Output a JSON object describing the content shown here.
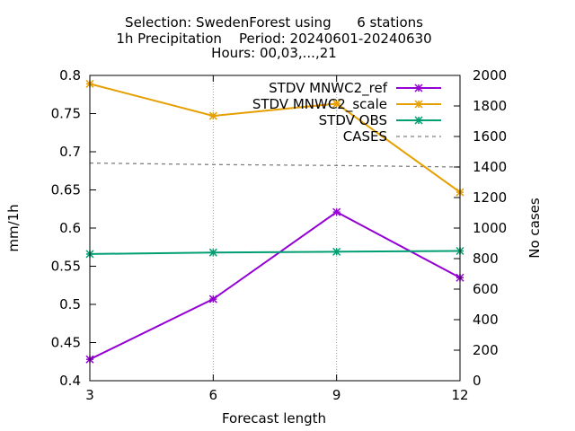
{
  "chart_data": {
    "type": "line",
    "title_lines": [
      "Selection: SwedenForest using      6 stations",
      "1h Precipitation    Period: 20240601-20240630",
      "Hours: 00,03,...,21"
    ],
    "xlabel": "Forecast length",
    "ylabel": "mm/1h",
    "y2label": "No cases",
    "x": [
      3,
      6,
      9,
      12
    ],
    "xlim": [
      3,
      12
    ],
    "ylim": [
      0.4,
      0.8
    ],
    "y2lim": [
      0,
      2000
    ],
    "x_ticks": [
      "3",
      "6",
      "9",
      "12"
    ],
    "y_ticks": [
      "0.4",
      "0.45",
      "0.5",
      "0.55",
      "0.6",
      "0.65",
      "0.7",
      "0.75",
      "0.8"
    ],
    "y2_ticks": [
      "0",
      "200",
      "400",
      "600",
      "800",
      "1000",
      "1200",
      "1400",
      "1600",
      "1800",
      "2000"
    ],
    "grid": "vertical at x ticks",
    "legend_position": "top-right",
    "series": [
      {
        "name": "STDV MNWC2_ref",
        "color": "#9400d3",
        "axis": "y",
        "marker": "x",
        "values": [
          0.428,
          0.507,
          0.621,
          0.535
        ]
      },
      {
        "name": "STDV MNWC2_scale",
        "color": "#e69f00",
        "axis": "y",
        "marker": "x",
        "values": [
          0.789,
          0.747,
          0.763,
          0.647
        ]
      },
      {
        "name": "STDV OBS",
        "color": "#009e73",
        "axis": "y",
        "marker": "x",
        "values": [
          0.566,
          0.568,
          0.569,
          0.57
        ]
      },
      {
        "name": "CASES",
        "color": "#808080",
        "axis": "y2",
        "marker": "none",
        "dashed": true,
        "values": [
          1426,
          1416,
          1410,
          1400
        ]
      }
    ]
  }
}
